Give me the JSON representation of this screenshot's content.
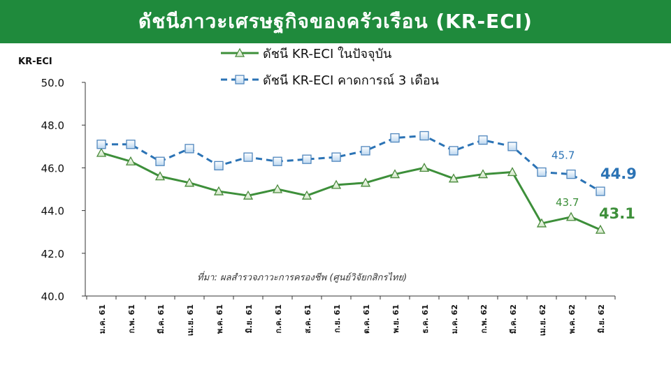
{
  "header": {
    "title": "ดัชนีภาวะเศรษฐกิจของครัวเรือน (KR-ECI)"
  },
  "colors": {
    "banner": "#1f8a3c",
    "current_line": "#3d8f3a",
    "current_marker_fill": "#e6f2dc",
    "expected_line": "#2b73b5",
    "expected_marker_fill": "#cfe3f5",
    "current_label": "#3d8f3a",
    "expected_label": "#2b73b5"
  },
  "chart_data": {
    "type": "line",
    "ylabel": "KR-ECI",
    "ylim": [
      40,
      50
    ],
    "yticks": [
      "50.0",
      "48.0",
      "46.0",
      "44.0",
      "42.0",
      "40.0"
    ],
    "grid": false,
    "legend_position": "top",
    "categories": [
      "ม.ค. 61",
      "ก.พ. 61",
      "มี.ค. 61",
      "เม.ย. 61",
      "พ.ค. 61",
      "มิ.ย. 61",
      "ก.ค. 61",
      "ส.ค. 61",
      "ก.ย. 61",
      "ต.ค. 61",
      "พ.ย. 61",
      "ธ.ค. 61",
      "ม.ค. 62",
      "ก.พ. 62",
      "มี.ค. 62",
      "เม.ย. 62",
      "พ.ค. 62",
      "มิ.ย. 62"
    ],
    "series": [
      {
        "name": "ดัชนี KR-ECI ในปัจจุบัน",
        "marker": "triangle",
        "style": "solid",
        "values": [
          46.7,
          46.3,
          45.6,
          45.3,
          44.9,
          44.7,
          45.0,
          44.7,
          45.2,
          45.3,
          45.7,
          46.0,
          45.5,
          45.7,
          45.8,
          43.4,
          43.7,
          43.1
        ]
      },
      {
        "name": "ดัชนี KR-ECI คาดการณ์ 3 เดือน",
        "marker": "square",
        "style": "dashed",
        "values": [
          47.1,
          47.1,
          46.3,
          46.9,
          46.1,
          46.5,
          46.3,
          46.4,
          46.5,
          46.8,
          47.4,
          47.5,
          46.8,
          47.3,
          47.0,
          45.8,
          45.7,
          44.9
        ]
      }
    ],
    "annotations": [
      {
        "text": "45.7",
        "series": 1,
        "index": 16
      },
      {
        "text": "44.9",
        "series": 1,
        "index": 17
      },
      {
        "text": "43.7",
        "series": 0,
        "index": 16
      },
      {
        "text": "43.1",
        "series": 0,
        "index": 17
      }
    ],
    "source_note": "ที่มา: ผลสำรวจภาวะการครองชีพ (ศูนย์วิจัยกสิกรไทย)"
  }
}
